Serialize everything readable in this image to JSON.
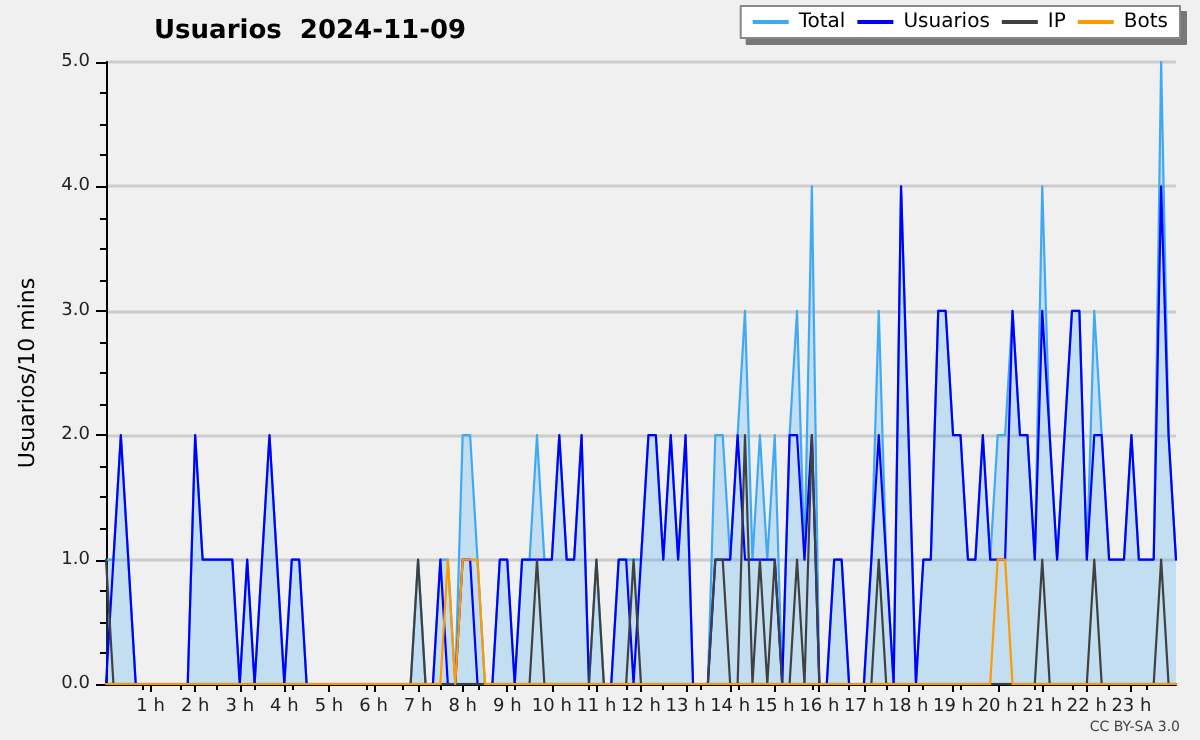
{
  "chart_data": {
    "type": "line",
    "title": "Usuarios  2024-11-09",
    "ylabel": "Usuarios/10 mins",
    "annotations": [
      "CC BY-SA 3.0"
    ],
    "x": [
      0,
      0.167,
      0.333,
      0.5,
      0.667,
      0.833,
      1,
      1.167,
      1.333,
      1.5,
      1.667,
      1.833,
      2,
      2.167,
      2.333,
      2.5,
      2.667,
      2.833,
      3,
      3.167,
      3.333,
      3.5,
      3.667,
      3.833,
      4,
      4.167,
      4.333,
      4.5,
      4.667,
      4.833,
      5,
      5.167,
      5.333,
      5.5,
      5.667,
      5.833,
      6,
      6.167,
      6.333,
      6.5,
      6.667,
      6.833,
      7,
      7.167,
      7.333,
      7.5,
      7.667,
      7.833,
      8,
      8.167,
      8.333,
      8.5,
      8.667,
      8.833,
      9,
      9.167,
      9.333,
      9.5,
      9.667,
      9.833,
      10,
      10.167,
      10.333,
      10.5,
      10.667,
      10.833,
      11,
      11.167,
      11.333,
      11.5,
      11.667,
      11.833,
      12,
      12.167,
      12.333,
      12.5,
      12.667,
      12.833,
      13,
      13.167,
      13.333,
      13.5,
      13.667,
      13.833,
      14,
      14.167,
      14.333,
      14.5,
      14.667,
      14.833,
      15,
      15.167,
      15.333,
      15.5,
      15.667,
      15.833,
      16,
      16.167,
      16.333,
      16.5,
      16.667,
      16.833,
      17,
      17.167,
      17.333,
      17.5,
      17.667,
      17.833,
      18,
      18.167,
      18.333,
      18.5,
      18.667,
      18.833,
      19,
      19.167,
      19.333,
      19.5,
      19.667,
      19.833,
      20,
      20.167,
      20.333,
      20.5,
      20.667,
      20.833,
      21,
      21.167,
      21.333,
      21.5,
      21.667,
      21.833,
      22,
      22.167,
      22.333,
      22.5,
      22.667,
      22.833,
      23,
      23.167,
      23.333,
      23.5,
      23.667,
      23.833,
      24
    ],
    "series": [
      {
        "name": "Total",
        "type": "area",
        "color": "#3fa9f5",
        "values": [
          1,
          1,
          2,
          1,
          0,
          0,
          0,
          0,
          0,
          0,
          0,
          0,
          2,
          1,
          1,
          1,
          1,
          1,
          0,
          1,
          0,
          1,
          2,
          1,
          0,
          1,
          1,
          0,
          0,
          0,
          0,
          0,
          0,
          0,
          0,
          0,
          0,
          0,
          0,
          0,
          0,
          0,
          1,
          0,
          0,
          1,
          1,
          0,
          2,
          2,
          1,
          0,
          0,
          1,
          1,
          0,
          1,
          1,
          2,
          1,
          1,
          2,
          1,
          1,
          2,
          0,
          1,
          0,
          0,
          1,
          1,
          1,
          1,
          2,
          2,
          1,
          2,
          1,
          2,
          0,
          0,
          0,
          2,
          2,
          1,
          2,
          3,
          1,
          2,
          1,
          2,
          0,
          2,
          3,
          1,
          4,
          0,
          0,
          1,
          1,
          0,
          0,
          0,
          1,
          3,
          1,
          0,
          4,
          2,
          0,
          1,
          1,
          3,
          3,
          2,
          2,
          1,
          1,
          2,
          1,
          2,
          2,
          3,
          2,
          2,
          1,
          4,
          2,
          1,
          2,
          3,
          3,
          1,
          3,
          2,
          1,
          1,
          1,
          2,
          1,
          1,
          1,
          5,
          2,
          1
        ]
      },
      {
        "name": "Usuarios",
        "color": "#0000ff",
        "values": [
          0,
          1,
          2,
          1,
          0,
          0,
          0,
          0,
          0,
          0,
          0,
          0,
          2,
          1,
          1,
          1,
          1,
          1,
          0,
          1,
          0,
          1,
          2,
          1,
          0,
          1,
          1,
          0,
          0,
          0,
          0,
          0,
          0,
          0,
          0,
          0,
          0,
          0,
          0,
          0,
          0,
          0,
          0,
          0,
          0,
          1,
          0,
          0,
          1,
          1,
          0,
          0,
          0,
          1,
          1,
          0,
          1,
          1,
          1,
          1,
          1,
          2,
          1,
          1,
          2,
          0,
          0,
          0,
          0,
          1,
          1,
          0,
          1,
          2,
          2,
          1,
          2,
          1,
          2,
          0,
          0,
          0,
          1,
          1,
          1,
          2,
          1,
          1,
          1,
          1,
          1,
          0,
          2,
          2,
          1,
          2,
          0,
          0,
          1,
          1,
          0,
          0,
          0,
          1,
          2,
          1,
          0,
          4,
          2,
          0,
          1,
          1,
          3,
          3,
          2,
          2,
          1,
          1,
          2,
          1,
          1,
          1,
          3,
          2,
          2,
          1,
          3,
          2,
          1,
          2,
          3,
          3,
          1,
          2,
          2,
          1,
          1,
          1,
          2,
          1,
          1,
          1,
          4,
          2,
          1
        ]
      },
      {
        "name": "IP",
        "color": "#404040",
        "values": [
          1,
          0,
          0,
          0,
          0,
          0,
          0,
          0,
          0,
          0,
          0,
          0,
          0,
          0,
          0,
          0,
          0,
          0,
          0,
          0,
          0,
          0,
          0,
          0,
          0,
          0,
          0,
          0,
          0,
          0,
          0,
          0,
          0,
          0,
          0,
          0,
          0,
          0,
          0,
          0,
          0,
          0,
          1,
          0,
          0,
          0,
          0,
          0,
          0,
          0,
          0,
          0,
          0,
          0,
          0,
          0,
          0,
          0,
          1,
          0,
          0,
          0,
          0,
          0,
          0,
          0,
          1,
          0,
          0,
          0,
          0,
          1,
          0,
          0,
          0,
          0,
          0,
          0,
          0,
          0,
          0,
          0,
          1,
          1,
          0,
          0,
          2,
          0,
          1,
          0,
          1,
          0,
          0,
          1,
          0,
          2,
          0,
          0,
          0,
          0,
          0,
          0,
          0,
          0,
          1,
          0,
          0,
          0,
          0,
          0,
          0,
          0,
          0,
          0,
          0,
          0,
          0,
          0,
          0,
          0,
          0,
          0,
          0,
          0,
          0,
          0,
          1,
          0,
          0,
          0,
          0,
          0,
          0,
          1,
          0,
          0,
          0,
          0,
          0,
          0,
          0,
          0,
          1,
          0,
          0
        ]
      },
      {
        "name": "Bots",
        "color": "#ff9900",
        "values": [
          0,
          0,
          0,
          0,
          0,
          0,
          0,
          0,
          0,
          0,
          0,
          0,
          0,
          0,
          0,
          0,
          0,
          0,
          0,
          0,
          0,
          0,
          0,
          0,
          0,
          0,
          0,
          0,
          0,
          0,
          0,
          0,
          0,
          0,
          0,
          0,
          0,
          0,
          0,
          0,
          0,
          0,
          0,
          0,
          0,
          0,
          1,
          0,
          1,
          1,
          1,
          0,
          0,
          0,
          0,
          0,
          0,
          0,
          0,
          0,
          0,
          0,
          0,
          0,
          0,
          0,
          0,
          0,
          0,
          0,
          0,
          0,
          0,
          0,
          0,
          0,
          0,
          0,
          0,
          0,
          0,
          0,
          0,
          0,
          0,
          0,
          0,
          0,
          0,
          0,
          0,
          0,
          0,
          0,
          0,
          0,
          0,
          0,
          0,
          0,
          0,
          0,
          0,
          0,
          0,
          0,
          0,
          0,
          0,
          0,
          0,
          0,
          0,
          0,
          0,
          0,
          0,
          0,
          0,
          0,
          1,
          1,
          0,
          0,
          0,
          0,
          0,
          0,
          0,
          0,
          0,
          0,
          0,
          0,
          0,
          0,
          0,
          0,
          0,
          0,
          0,
          0,
          0,
          0,
          0
        ]
      }
    ],
    "xlim": [
      0,
      24
    ],
    "xticks": [
      {
        "value": 1,
        "label": "1 h"
      },
      {
        "value": 2,
        "label": "2 h"
      },
      {
        "value": 3,
        "label": "3 h"
      },
      {
        "value": 4,
        "label": "4 h"
      },
      {
        "value": 5,
        "label": "5 h"
      },
      {
        "value": 6,
        "label": "6 h"
      },
      {
        "value": 7,
        "label": "7 h"
      },
      {
        "value": 8,
        "label": "8 h"
      },
      {
        "value": 9,
        "label": "9 h"
      },
      {
        "value": 10,
        "label": "10 h"
      },
      {
        "value": 11,
        "label": "11 h"
      },
      {
        "value": 12,
        "label": "12 h"
      },
      {
        "value": 13,
        "label": "13 h"
      },
      {
        "value": 14,
        "label": "14 h"
      },
      {
        "value": 15,
        "label": "15 h"
      },
      {
        "value": 16,
        "label": "16 h"
      },
      {
        "value": 17,
        "label": "17 h"
      },
      {
        "value": 18,
        "label": "18 h"
      },
      {
        "value": 19,
        "label": "19 h"
      },
      {
        "value": 20,
        "label": "20 h"
      },
      {
        "value": 21,
        "label": "21 h"
      },
      {
        "value": 22,
        "label": "22 h"
      },
      {
        "value": 23,
        "label": "23 h"
      }
    ],
    "ylim": [
      0,
      5
    ],
    "yticks": [
      {
        "value": 0,
        "label": "0.0"
      },
      {
        "value": 1,
        "label": "1.0"
      },
      {
        "value": 2,
        "label": "2.0"
      },
      {
        "value": 3,
        "label": "3.0"
      },
      {
        "value": 4,
        "label": "4.0"
      },
      {
        "value": 5,
        "label": "5.0"
      }
    ],
    "grid": "y",
    "legend": "top right",
    "marker": "none",
    "line_style": "solid"
  }
}
